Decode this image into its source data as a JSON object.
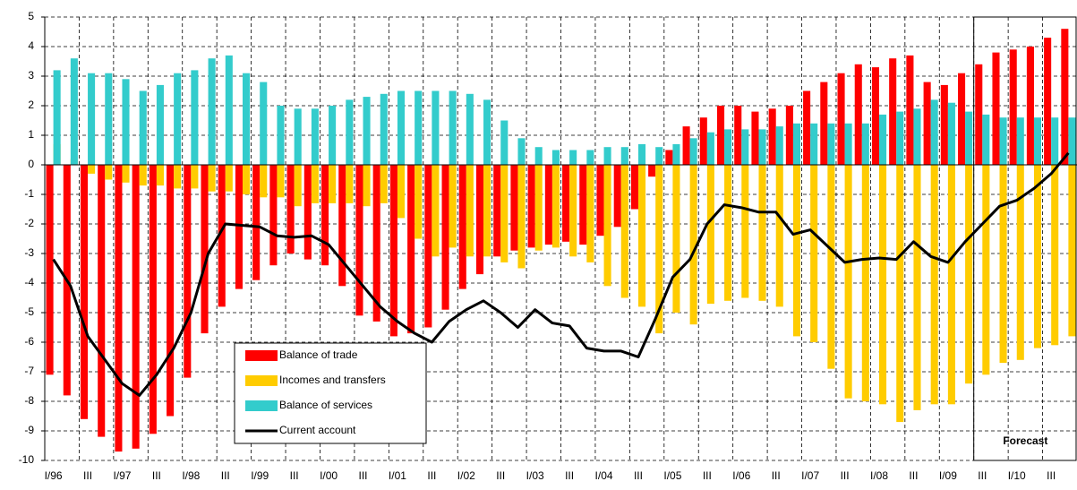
{
  "chart_data": {
    "type": "bar",
    "categories": [
      "I/96",
      null,
      "III",
      null,
      "I/97",
      null,
      "III",
      null,
      "I/98",
      null,
      "III",
      null,
      "I/99",
      null,
      "III",
      null,
      "I/00",
      null,
      "III",
      null,
      "I/01",
      null,
      "III",
      null,
      "I/02",
      null,
      "III",
      null,
      "I/03",
      null,
      "III",
      null,
      "I/04",
      null,
      "III",
      null,
      "I/05",
      null,
      "III",
      null,
      "I/06",
      null,
      "III",
      null,
      "I/07",
      null,
      "III",
      null,
      "I/08",
      null,
      "III",
      null,
      "I/09",
      null,
      "III",
      null,
      "I/10",
      null,
      "III",
      null
    ],
    "series": [
      {
        "name": "Balance of trade",
        "type": "bar",
        "color": "#ff0000",
        "values": [
          -7.1,
          -7.8,
          -8.6,
          -9.2,
          -9.7,
          -9.6,
          -9.1,
          -8.5,
          -7.2,
          -5.7,
          -4.8,
          -4.2,
          -3.9,
          -3.4,
          -3.0,
          -3.2,
          -3.4,
          -4.1,
          -5.1,
          -5.3,
          -5.8,
          -5.7,
          -5.5,
          -4.9,
          -4.2,
          -3.7,
          -3.1,
          -2.9,
          -2.8,
          -2.7,
          -2.6,
          -2.7,
          -2.4,
          -2.1,
          -1.5,
          -0.4,
          0.5,
          1.3,
          1.6,
          2.0,
          2.0,
          1.8,
          1.9,
          2.0,
          2.5,
          2.8,
          3.1,
          3.4,
          3.3,
          3.6,
          3.7,
          2.8,
          2.7,
          3.1,
          3.4,
          3.8,
          3.9,
          4.0,
          4.3,
          4.6
        ]
      },
      {
        "name": "Incomes and transfers",
        "type": "bar",
        "color": "#ffcc00",
        "values": [
          0.7,
          0.2,
          -0.3,
          -0.5,
          -0.6,
          -0.7,
          -0.7,
          -0.8,
          -0.8,
          -0.9,
          -0.9,
          -1.0,
          -1.1,
          -1.1,
          -1.4,
          -1.3,
          -1.3,
          -1.3,
          -1.4,
          -1.3,
          -1.8,
          -2.5,
          -3.1,
          -2.8,
          -3.1,
          -3.1,
          -3.3,
          -3.5,
          -2.9,
          -2.8,
          -3.1,
          -3.3,
          -4.1,
          -4.5,
          -4.8,
          -5.7,
          -5.0,
          -5.4,
          -4.7,
          -4.6,
          -4.5,
          -4.6,
          -4.8,
          -5.8,
          -6.0,
          -6.9,
          -7.9,
          -8.0,
          -8.1,
          -8.7,
          -8.3,
          -8.1,
          -8.1,
          -7.4,
          -7.1,
          -6.7,
          -6.6,
          -6.2,
          -6.1,
          -5.8
        ]
      },
      {
        "name": "Balance of services",
        "type": "bar",
        "color": "#33cccc",
        "values": [
          3.2,
          3.6,
          3.1,
          3.1,
          2.9,
          2.5,
          2.7,
          3.1,
          3.2,
          3.6,
          3.7,
          3.1,
          2.8,
          2.0,
          1.9,
          1.9,
          2.0,
          2.2,
          2.3,
          2.4,
          2.5,
          2.5,
          2.5,
          2.5,
          2.4,
          2.2,
          1.5,
          0.9,
          0.6,
          0.5,
          0.5,
          0.5,
          0.6,
          0.6,
          0.7,
          0.6,
          0.7,
          0.9,
          1.1,
          1.2,
          1.2,
          1.2,
          1.3,
          1.4,
          1.4,
          1.4,
          1.4,
          1.4,
          1.7,
          1.8,
          1.9,
          2.2,
          2.1,
          1.8,
          1.7,
          1.6,
          1.6,
          1.6,
          1.6,
          1.6
        ]
      },
      {
        "name": "Current account",
        "type": "line",
        "color": "#000000",
        "values": [
          -3.2,
          -4.1,
          -5.8,
          -6.6,
          -7.4,
          -7.8,
          -7.1,
          -6.2,
          -5.0,
          -3.0,
          -2.0,
          -2.05,
          -2.1,
          -2.4,
          -2.45,
          -2.4,
          -2.7,
          -3.4,
          -4.1,
          -4.8,
          -5.3,
          -5.7,
          -6.0,
          -5.3,
          -4.9,
          -4.6,
          -5.0,
          -5.5,
          -4.9,
          -5.35,
          -5.45,
          -6.2,
          -6.3,
          -6.3,
          -6.5,
          -5.2,
          -3.8,
          -3.2,
          -2.0,
          -1.35,
          -1.45,
          -1.6,
          -1.6,
          -2.35,
          -2.2,
          -2.75,
          -3.3,
          -3.2,
          -3.15,
          -3.2,
          -2.6,
          -3.1,
          -3.3,
          -2.6,
          -2.0,
          -1.4,
          -1.2,
          -0.8,
          -0.3,
          0.4
        ]
      }
    ],
    "ylim": [
      -10,
      5
    ],
    "yticks": [
      -10,
      -9,
      -8,
      -7,
      -6,
      -5,
      -4,
      -3,
      -2,
      -1,
      0,
      1,
      2,
      3,
      4,
      5
    ],
    "grid": true,
    "annotation": "Forecast"
  }
}
